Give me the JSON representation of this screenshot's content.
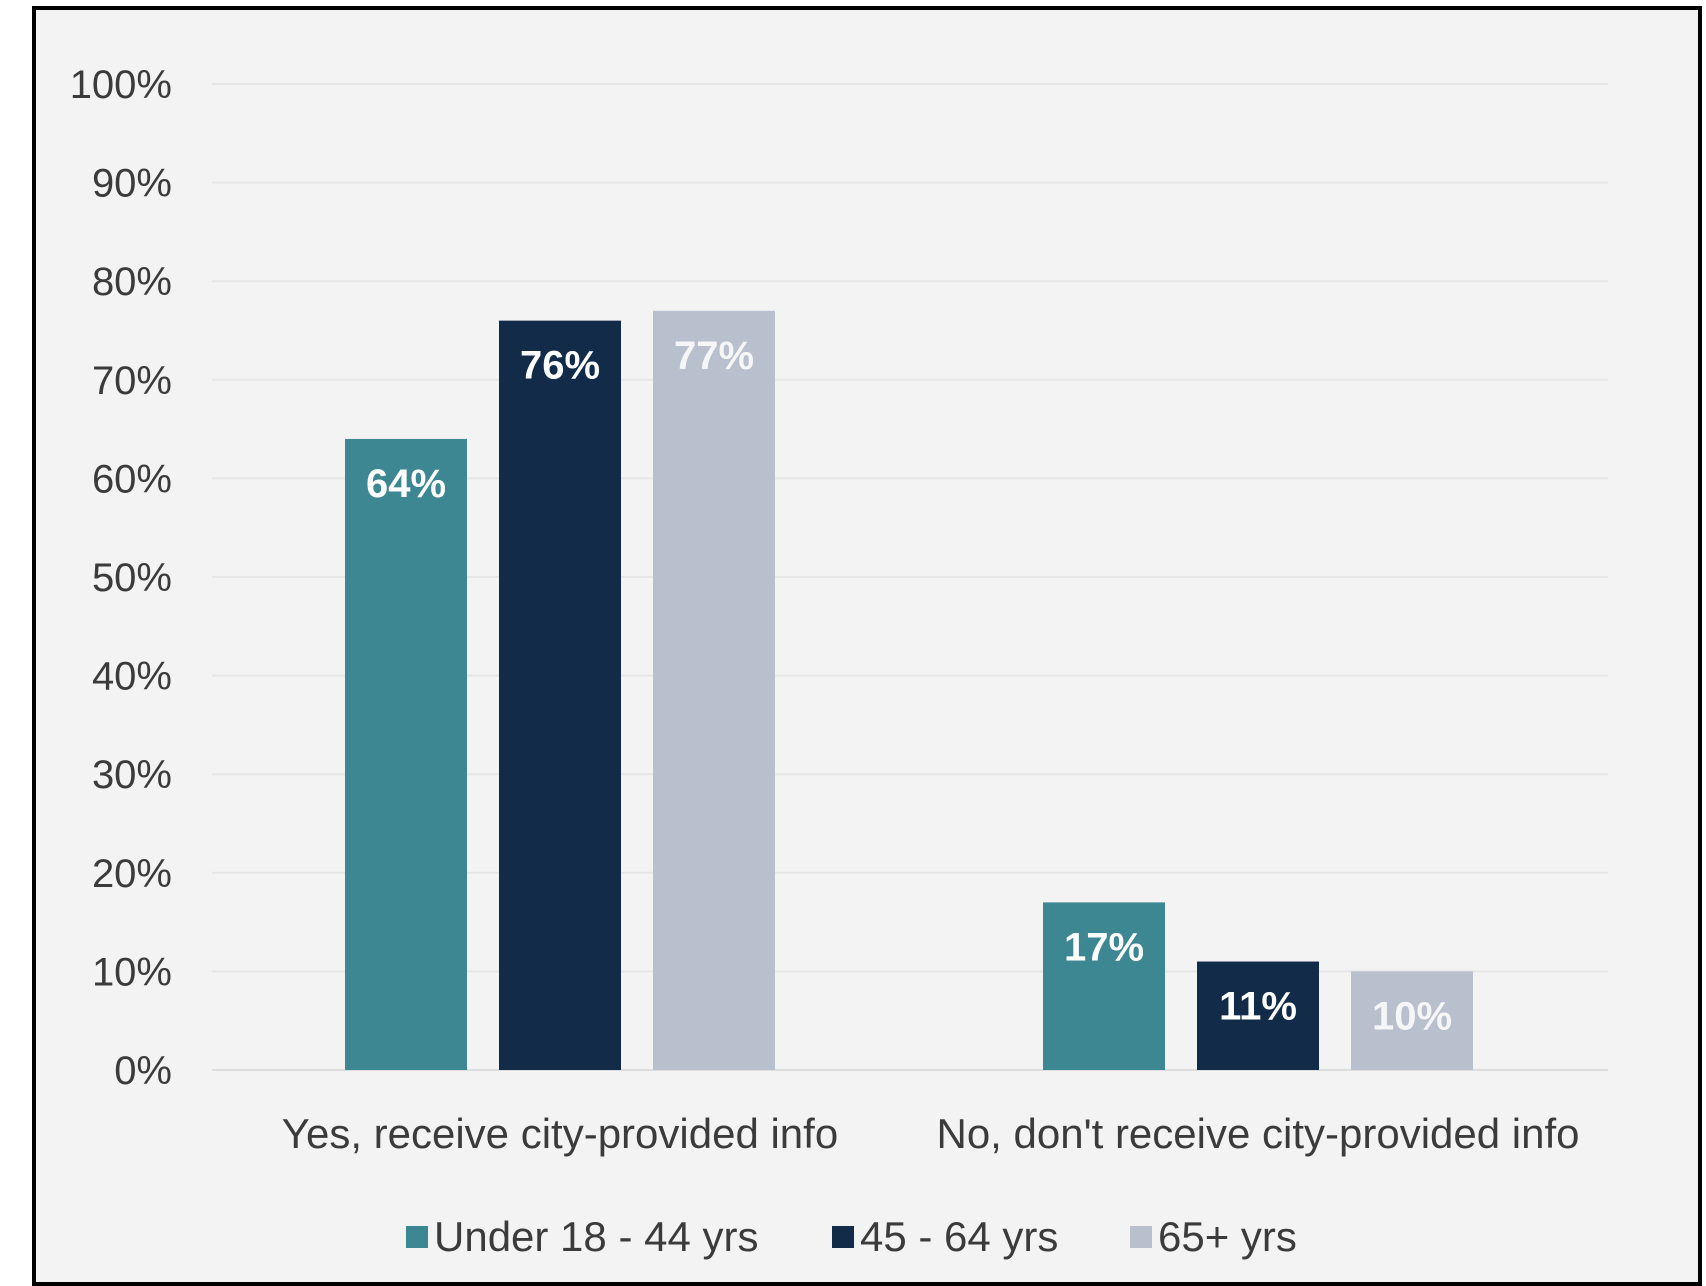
{
  "chart_data": {
    "type": "bar",
    "categories": [
      "Yes, receive city-provided info",
      "No, don't receive city-provided info"
    ],
    "series": [
      {
        "name": "Under 18 - 44 yrs",
        "values": [
          64,
          17
        ],
        "labels": [
          "64%",
          "17%"
        ],
        "color": "#3d8793",
        "label_color": "#ffffff"
      },
      {
        "name": "45 - 64 yrs",
        "values": [
          76,
          11
        ],
        "labels": [
          "76%",
          "11%"
        ],
        "color": "#112b48",
        "label_color": "#ffffff"
      },
      {
        "name": "65+ yrs",
        "values": [
          77,
          10
        ],
        "labels": [
          "77%",
          "10%"
        ],
        "color": "#b8bfcd",
        "label_color": "#f5f6f8"
      }
    ],
    "y_ticks": [
      "0%",
      "10%",
      "20%",
      "30%",
      "40%",
      "50%",
      "60%",
      "70%",
      "80%",
      "90%",
      "100%"
    ],
    "ylim": [
      0,
      100
    ],
    "grid": true,
    "legend": "bottom",
    "colors": {
      "background": "#f3f3f3",
      "gridline": "#e6e6e6",
      "text": "#3b3b3b",
      "border": "#000000"
    }
  }
}
